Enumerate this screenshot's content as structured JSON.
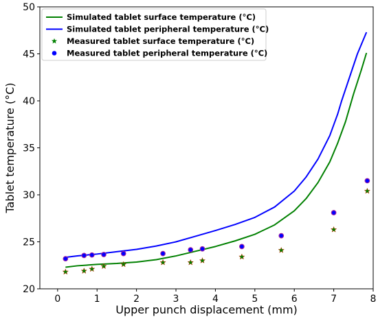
{
  "chart_data": {
    "type": "line",
    "title": "",
    "xlabel": "Upper punch displacement (mm)",
    "ylabel": "Tablet temperature (°C)",
    "xlim": [
      -0.45,
      8
    ],
    "ylim": [
      20,
      50
    ],
    "xticks": [
      0,
      1,
      2,
      3,
      4,
      5,
      6,
      7,
      8
    ],
    "yticks": [
      20,
      25,
      30,
      35,
      40,
      45,
      50
    ],
    "grid": false,
    "legend_position": "top-left",
    "series": [
      {
        "name": "Simulated tablet surface temperature (°C)",
        "kind": "line",
        "color": "#008000",
        "x": [
          0.2,
          0.5,
          1.0,
          1.5,
          2.0,
          2.5,
          3.0,
          3.5,
          4.0,
          4.5,
          5.0,
          5.5,
          6.0,
          6.3,
          6.6,
          6.9,
          7.1,
          7.3,
          7.5,
          7.7,
          7.83
        ],
        "y": [
          22.3,
          22.45,
          22.6,
          22.7,
          22.85,
          23.1,
          23.5,
          24.0,
          24.5,
          25.1,
          25.8,
          26.8,
          28.3,
          29.6,
          31.3,
          33.5,
          35.5,
          37.8,
          40.7,
          43.3,
          45.1
        ]
      },
      {
        "name": "Simulated tablet peripheral temperature (°C)",
        "kind": "line",
        "color": "#0000ff",
        "x": [
          0.2,
          0.5,
          1.0,
          1.5,
          2.0,
          2.5,
          3.0,
          3.5,
          4.0,
          4.5,
          5.0,
          5.5,
          6.0,
          6.3,
          6.6,
          6.9,
          7.1,
          7.2,
          7.4,
          7.6,
          7.83
        ],
        "y": [
          23.35,
          23.5,
          23.7,
          23.95,
          24.2,
          24.55,
          25.0,
          25.6,
          26.2,
          26.85,
          27.6,
          28.7,
          30.4,
          31.9,
          33.8,
          36.3,
          38.6,
          40.0,
          42.5,
          45.0,
          47.3
        ]
      },
      {
        "name": "Measured tablet surface temperature (°C)",
        "kind": "scatter",
        "marker": "star",
        "color": "#008000",
        "x": [
          0.2,
          0.67,
          0.87,
          1.17,
          1.67,
          2.67,
          3.37,
          3.67,
          4.67,
          5.67,
          7.0,
          7.85
        ],
        "y": [
          21.8,
          21.9,
          22.1,
          22.4,
          22.6,
          22.8,
          22.8,
          23.0,
          23.4,
          24.1,
          26.3,
          30.4
        ]
      },
      {
        "name": "Measured tablet peripheral temperature (°C)",
        "kind": "scatter",
        "marker": "circle",
        "color": "#0000ff",
        "x": [
          0.2,
          0.67,
          0.87,
          1.17,
          1.67,
          2.67,
          3.37,
          3.67,
          4.67,
          5.67,
          7.0,
          7.85
        ],
        "y": [
          23.2,
          23.55,
          23.6,
          23.65,
          23.75,
          23.75,
          24.15,
          24.25,
          24.5,
          25.65,
          28.1,
          31.5
        ]
      }
    ]
  }
}
